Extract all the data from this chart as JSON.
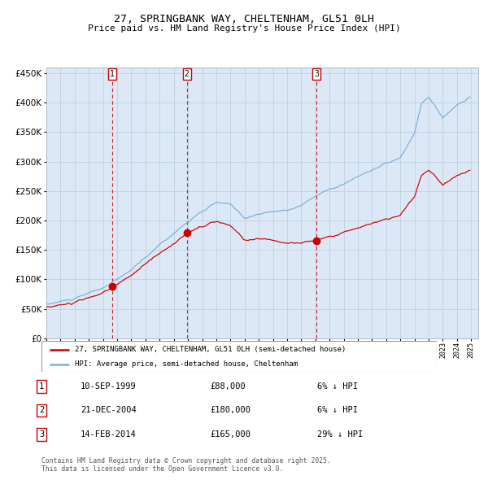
{
  "title1": "27, SPRINGBANK WAY, CHELTENHAM, GL51 0LH",
  "title2": "Price paid vs. HM Land Registry's House Price Index (HPI)",
  "legend_label_red": "27, SPRINGBANK WAY, CHELTENHAM, GL51 0LH (semi-detached house)",
  "legend_label_blue": "HPI: Average price, semi-detached house, Cheltenham",
  "sale1_date": "10-SEP-1999",
  "sale1_price": "£88,000",
  "sale1_hpi": "6% ↓ HPI",
  "sale2_date": "21-DEC-2004",
  "sale2_price": "£180,000",
  "sale2_hpi": "6% ↓ HPI",
  "sale3_date": "14-FEB-2014",
  "sale3_price": "£165,000",
  "sale3_hpi": "29% ↓ HPI",
  "footnote1": "Contains HM Land Registry data © Crown copyright and database right 2025.",
  "footnote2": "This data is licensed under the Open Government Licence v3.0.",
  "bg_color": "#dce8f5",
  "red_color": "#cc0000",
  "blue_color": "#7ab0d4",
  "grid_color": "#b8cede",
  "ylim_min": 0,
  "ylim_max": 460000,
  "sale1_year": 1999.69,
  "sale2_year": 2004.97,
  "sale3_year": 2014.12,
  "sale1_val": 88000,
  "sale2_val": 180000,
  "sale3_val": 165000,
  "start_year": 1995,
  "end_year": 2025
}
